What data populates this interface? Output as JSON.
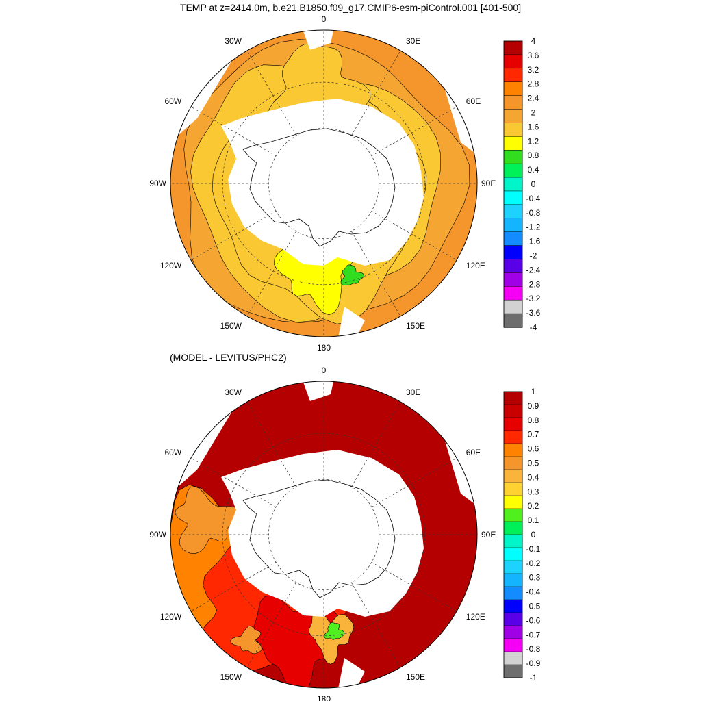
{
  "figure": {
    "title": "TEMP at z=2414.0m, b.e21.B1850.f09_g17.CMIP6-esm-piControl.001 [401-500]",
    "subtitle": "(MODEL - LEVITUS/PHC2)"
  },
  "panels": [
    {
      "name": "model-temperature",
      "longitude_labels": [
        "0",
        "30E",
        "60E",
        "90E",
        "120E",
        "150E",
        "180",
        "150W",
        "120W",
        "90W",
        "60W",
        "30W"
      ],
      "colorbar": {
        "labels": [
          "4",
          "3.6",
          "3.2",
          "2.8",
          "2.4",
          "2",
          "1.6",
          "1.2",
          "0.8",
          "0.4",
          "0",
          "-0.4",
          "-0.8",
          "-1.2",
          "-1.6",
          "-2",
          "-2.4",
          "-2.8",
          "-3.2",
          "-3.6",
          "-4"
        ],
        "colors": [
          "#b40000",
          "#e60000",
          "#ff2800",
          "#ff8200",
          "#f5962d",
          "#f5a532",
          "#fac832",
          "#ffff00",
          "#32dc1e",
          "#00f05a",
          "#00f5c8",
          "#00ffff",
          "#1ed2ff",
          "#14b4ff",
          "#148cff",
          "#0000ff",
          "#5a00e6",
          "#a000e6",
          "#f500f5",
          "#d2d2d2",
          "#6e6e6e"
        ]
      }
    },
    {
      "name": "model-minus-levitus",
      "longitude_labels": [
        "0",
        "30E",
        "60E",
        "90E",
        "120E",
        "150E",
        "180",
        "150W",
        "120W",
        "90W",
        "60W",
        "30W"
      ],
      "colorbar": {
        "labels": [
          "1",
          "0.9",
          "0.8",
          "0.7",
          "0.6",
          "0.5",
          "0.4",
          "0.3",
          "0.2",
          "0.1",
          "0",
          "-0.1",
          "-0.2",
          "-0.3",
          "-0.4",
          "-0.5",
          "-0.6",
          "-0.7",
          "-0.8",
          "-0.9",
          "-1"
        ],
        "colors": [
          "#b40000",
          "#c80000",
          "#e60000",
          "#ff2800",
          "#ff8200",
          "#f5962d",
          "#fab43c",
          "#ffd232",
          "#ffff00",
          "#50f01e",
          "#00f05a",
          "#00f5c8",
          "#00ffff",
          "#1ed2ff",
          "#14b4ff",
          "#148cff",
          "#0000ff",
          "#5a00e6",
          "#a000e6",
          "#f500f5",
          "#d2d2d2",
          "#6e6e6e"
        ]
      }
    }
  ]
}
